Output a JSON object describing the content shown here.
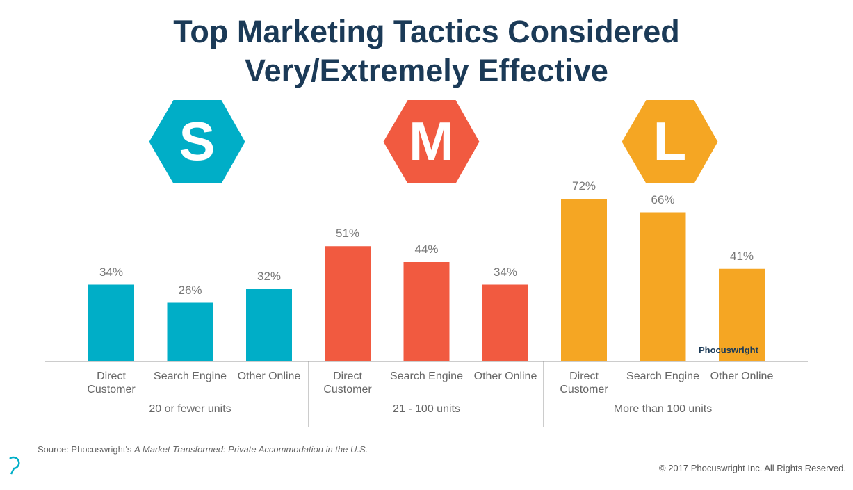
{
  "chart_data": {
    "type": "bar",
    "title": [
      "Top Marketing Tactics Considered",
      "Very/Extremely Effective"
    ],
    "groups": [
      {
        "badge": "S",
        "name": "20 or fewer units",
        "color": "#00aec7",
        "categories": [
          "Direct Customer",
          "Search Engine",
          "Other Online"
        ],
        "values": [
          34,
          26,
          32
        ],
        "value_labels": [
          "34%",
          "26%",
          "32%"
        ]
      },
      {
        "badge": "M",
        "name": "21 - 100 units",
        "color": "#f15a40",
        "categories": [
          "Direct Customer",
          "Search Engine",
          "Other Online"
        ],
        "values": [
          51,
          44,
          34
        ],
        "value_labels": [
          "51%",
          "44%",
          "34%"
        ]
      },
      {
        "badge": "L",
        "name": "More than 100 units",
        "color": "#f5a623",
        "categories": [
          "Direct Customer",
          "Search Engine",
          "Other Online"
        ],
        "values": [
          72,
          66,
          41
        ],
        "value_labels": [
          "72%",
          "66%",
          "41%"
        ]
      }
    ]
  },
  "logo": "Phocuswright",
  "source": {
    "prefix": "Source: Phocuswright's",
    "work": "A Market Transformed: Private Accommodation in the U.S."
  },
  "copyright": "© 2017 Phocuswright Inc. All Rights Reserved."
}
